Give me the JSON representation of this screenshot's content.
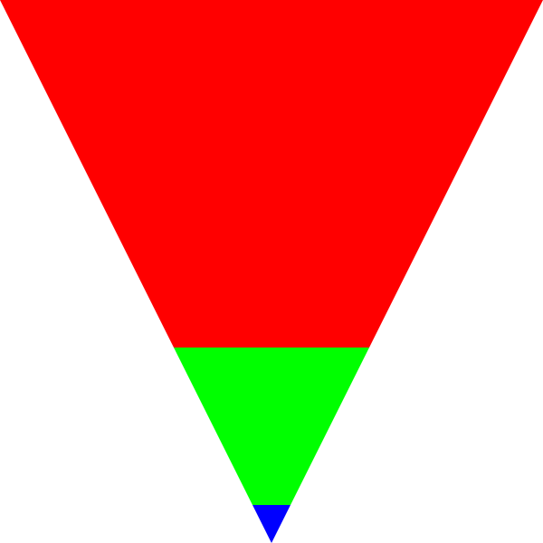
{
  "funnel": {
    "bands": [
      {
        "color": "#ff0000",
        "share": 0.64
      },
      {
        "color": "#00ff00",
        "share": 0.29
      },
      {
        "color": "#0000ff",
        "share": 0.07
      }
    ]
  }
}
